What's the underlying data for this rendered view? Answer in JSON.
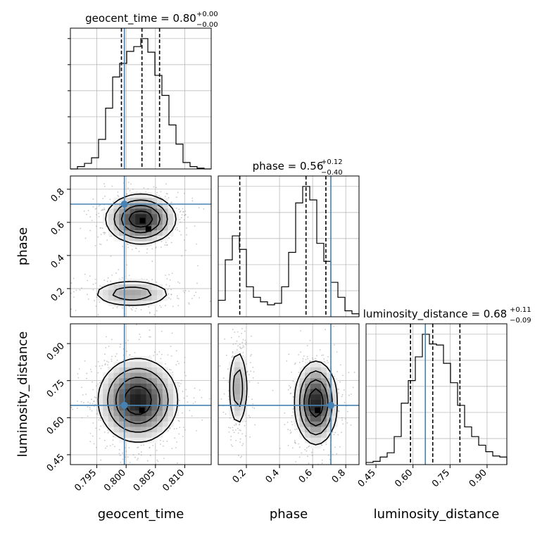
{
  "chart_data": {
    "type": "corner",
    "parameters": [
      "geocent_time",
      "phase",
      "luminosity_distance"
    ],
    "ranges": {
      "geocent_time": [
        0.7905,
        0.8145
      ],
      "phase": [
        0.03,
        0.88
      ],
      "luminosity_distance": [
        0.41,
        0.98
      ]
    },
    "truths": {
      "geocent_time": 0.7997,
      "phase": 0.71,
      "luminosity_distance": 0.65
    },
    "titles": [
      {
        "param": "geocent_time",
        "main": "geocent_time = 0.80",
        "sup": "+0.00",
        "sub": "−0.00"
      },
      {
        "param": "phase",
        "main": "phase = 0.56",
        "sup": "+0.12",
        "sub": "−0.40"
      },
      {
        "param": "luminosity_distance",
        "main": "luminosity_distance = 0.68",
        "sup": "+0.11",
        "sub": "−0.09"
      }
    ],
    "axis_labels": {
      "x": [
        "geocent_time",
        "phase",
        "luminosity_distance"
      ],
      "y": [
        "phase",
        "luminosity_distance"
      ]
    },
    "ticks": {
      "geocent_time": [
        {
          "v": 0.795,
          "label": "0.795"
        },
        {
          "v": 0.8,
          "label": "0.800"
        },
        {
          "v": 0.805,
          "label": "0.805"
        },
        {
          "v": 0.81,
          "label": "0.810"
        }
      ],
      "phase": [
        {
          "v": 0.2,
          "label": "0.2"
        },
        {
          "v": 0.4,
          "label": "0.4"
        },
        {
          "v": 0.6,
          "label": "0.6"
        },
        {
          "v": 0.8,
          "label": "0.8"
        }
      ],
      "luminosity_distance": [
        {
          "v": 0.45,
          "label": "0.45"
        },
        {
          "v": 0.6,
          "label": "0.60"
        },
        {
          "v": 0.75,
          "label": "0.75"
        },
        {
          "v": 0.9,
          "label": "0.90"
        }
      ]
    },
    "quantiles": {
      "geocent_time": [
        0.7992,
        0.8027,
        0.8057
      ],
      "phase": [
        0.16,
        0.56,
        0.68
      ],
      "luminosity_distance": [
        0.59,
        0.68,
        0.79
      ]
    },
    "histograms": {
      "geocent_time": {
        "edges": [
          0.7905,
          0.7917,
          0.7929,
          0.7941,
          0.7953,
          0.7965,
          0.7977,
          0.7989,
          0.8001,
          0.8013,
          0.8025,
          0.8037,
          0.8049,
          0.8061,
          0.8073,
          0.8085,
          0.8097,
          0.8109,
          0.8121,
          0.8133,
          0.8145
        ],
        "counts": [
          0,
          3,
          7,
          14,
          37,
          76,
          115,
          132,
          147,
          153,
          163,
          146,
          117,
          92,
          55,
          31,
          8,
          3,
          1,
          0
        ]
      },
      "phase": {
        "edges": [
          0.03,
          0.0725,
          0.115,
          0.1575,
          0.2,
          0.2425,
          0.285,
          0.3275,
          0.37,
          0.4125,
          0.455,
          0.4975,
          0.54,
          0.5825,
          0.625,
          0.6675,
          0.71,
          0.7525,
          0.795,
          0.8375,
          0.88
        ],
        "counts": [
          11,
          38,
          54,
          45,
          20,
          13,
          10,
          8,
          9,
          20,
          43,
          76,
          87,
          78,
          49,
          37,
          23,
          13,
          4,
          2
        ]
      },
      "luminosity_distance": {
        "edges": [
          0.41,
          0.4385,
          0.467,
          0.4955,
          0.524,
          0.5525,
          0.581,
          0.6095,
          0.638,
          0.6665,
          0.695,
          0.7235,
          0.752,
          0.7805,
          0.809,
          0.8375,
          0.866,
          0.8945,
          0.923,
          0.9515,
          0.98
        ],
        "counts": [
          2,
          3,
          7,
          11,
          26,
          57,
          78,
          100,
          121,
          112,
          111,
          94,
          76,
          55,
          35,
          26,
          18,
          12,
          8,
          7
        ]
      }
    },
    "contours_2d": [
      {
        "x_param": "geocent_time",
        "y_param": "phase",
        "modes": [
          {
            "cx": 0.8025,
            "cy": 0.62,
            "sx": 0.003,
            "sy": 0.075,
            "angle": -0.52,
            "weight": 0.68
          },
          {
            "cx": 0.801,
            "cy": 0.17,
            "sx": 0.0038,
            "sy": 0.045,
            "angle": -0.22,
            "weight": 0.32
          }
        ],
        "peak_points": [
          {
            "x": 0.8028,
            "y": 0.61
          },
          {
            "x": 0.8038,
            "y": 0.56
          }
        ]
      },
      {
        "x_param": "geocent_time",
        "y_param": "luminosity_distance",
        "modes": [
          {
            "cx": 0.802,
            "cy": 0.67,
            "sx": 0.0034,
            "sy": 0.085,
            "angle": 0.05,
            "weight": 1.0
          }
        ],
        "peak_points": [
          {
            "x": 0.8027,
            "y": 0.63
          }
        ]
      },
      {
        "x_param": "phase",
        "y_param": "luminosity_distance",
        "modes": [
          {
            "cx": 0.62,
            "cy": 0.66,
            "sx": 0.065,
            "sy": 0.085,
            "angle": 0.0,
            "weight": 0.68
          },
          {
            "cx": 0.15,
            "cy": 0.72,
            "sx": 0.032,
            "sy": 0.09,
            "angle": 0.0,
            "weight": 0.32
          }
        ],
        "peak_points": [
          {
            "x": 0.63,
            "y": 0.63
          }
        ]
      }
    ],
    "colors": {
      "truth": "#4682b4",
      "hist": "#000000",
      "grid": "#b0b0b0",
      "density_points": "#999999"
    }
  }
}
